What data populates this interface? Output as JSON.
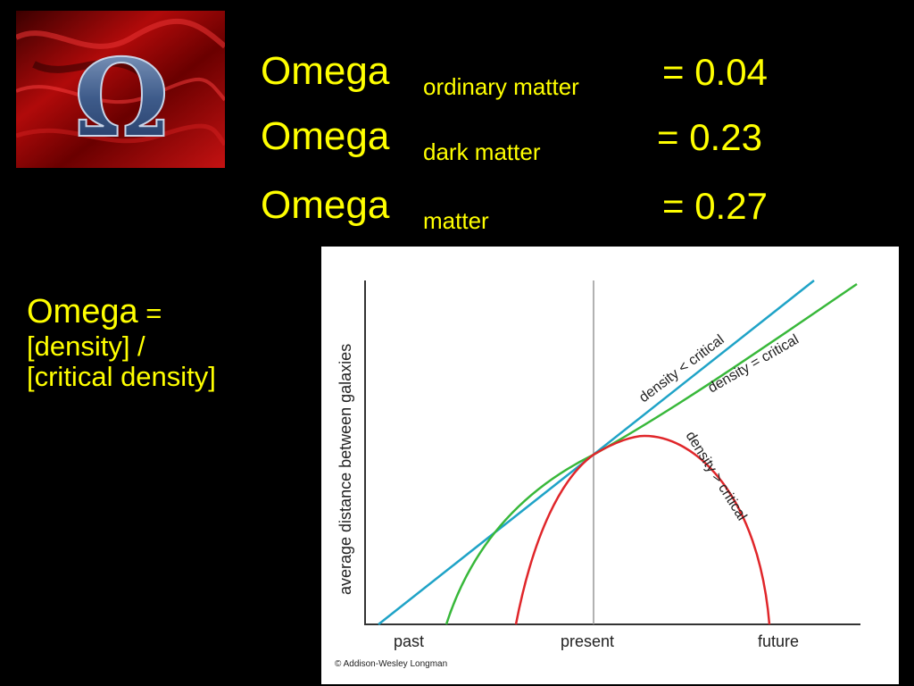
{
  "equations": [
    {
      "main": "Omega",
      "sub": "ordinary  matter",
      "value": "= 0.04"
    },
    {
      "main": "Omega",
      "sub": "dark matter",
      "value": "= 0.23"
    },
    {
      "main": "Omega",
      "sub": "matter",
      "value": "= 0.27"
    }
  ],
  "definition": {
    "head": "Omega",
    "equals": " =",
    "line2": "[density] /",
    "line3": "[critical density]"
  },
  "logo": {
    "symbol": "Ω"
  },
  "diagram": {
    "y_axis_label": "average distance between galaxies",
    "x_ticks": [
      "past",
      "present",
      "future"
    ],
    "curve_labels": {
      "less": "density < critical",
      "equal": "density = critical",
      "greater": "density > critical"
    },
    "copyright": "© Addison-Wesley Longman",
    "colors": {
      "less": "#1fa3c7",
      "equal": "#38b83a",
      "greater": "#e0262a",
      "axis": "#333333",
      "present_line": "#999999"
    }
  }
}
